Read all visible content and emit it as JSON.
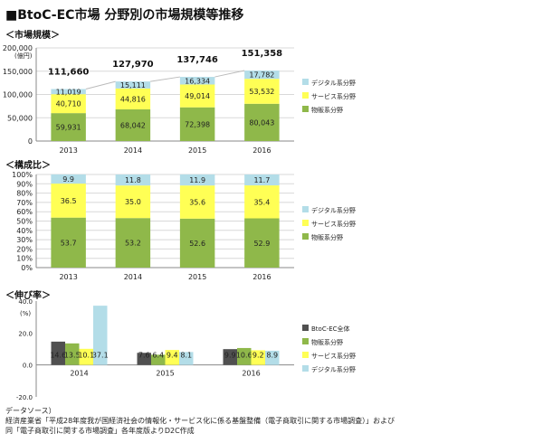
{
  "title": "■BtoC-EC市場 分野別の市場規模等推移",
  "sections": {
    "market": "＜市場規模＞",
    "ratio": "＜構成比＞",
    "growth": "＜伸び率＞"
  },
  "colors": {
    "goods": "#8fb84a",
    "service": "#ffff55",
    "digital": "#b3dde8",
    "total": "#505050",
    "grid": "#d8d8d8"
  },
  "chart_data": [
    {
      "id": "market",
      "type": "bar",
      "stacked": true,
      "title": "＜市場規模＞",
      "ylabel": "(億円)",
      "ylim": [
        0,
        200000
      ],
      "yticks": [
        "200,000",
        "150,000",
        "100,000",
        "50,000",
        "0"
      ],
      "categories": [
        "2013",
        "2014",
        "2015",
        "2016"
      ],
      "series": [
        {
          "name": "物販系分野",
          "values": [
            59931,
            68042,
            72398,
            80043
          ],
          "labels": [
            "59,931",
            "68,042",
            "72,398",
            "80,043"
          ]
        },
        {
          "name": "サービス系分野",
          "values": [
            40710,
            44816,
            49014,
            53532
          ],
          "labels": [
            "40,710",
            "44,816",
            "49,014",
            "53,532"
          ]
        },
        {
          "name": "デジタル系分野",
          "values": [
            11019,
            15111,
            16334,
            17782
          ],
          "labels": [
            "11,019",
            "15,111",
            "16,334",
            "17,782"
          ]
        }
      ],
      "totals": [
        "111,660",
        "127,970",
        "137,746",
        "151,358"
      ],
      "legend": "right"
    },
    {
      "id": "ratio",
      "type": "bar",
      "stacked": true,
      "title": "＜構成比＞",
      "ylim": [
        0,
        100
      ],
      "yticks": [
        "100%",
        "90%",
        "80%",
        "70%",
        "60%",
        "50%",
        "40%",
        "30%",
        "20%",
        "10%",
        "0%"
      ],
      "categories": [
        "2013",
        "2014",
        "2015",
        "2016"
      ],
      "series": [
        {
          "name": "物販系分野",
          "values": [
            53.7,
            53.2,
            52.6,
            52.9
          ],
          "labels": [
            "53.7",
            "53.2",
            "52.6",
            "52.9"
          ]
        },
        {
          "name": "サービス系分野",
          "values": [
            36.5,
            35.0,
            35.6,
            35.4
          ],
          "labels": [
            "36.5",
            "35.0",
            "35.6",
            "35.4"
          ]
        },
        {
          "name": "デジタル系分野",
          "values": [
            9.9,
            11.8,
            11.9,
            11.7
          ],
          "labels": [
            "9.9",
            "11.8",
            "11.9",
            "11.7"
          ]
        }
      ],
      "legend": "right"
    },
    {
      "id": "growth",
      "type": "bar",
      "stacked": false,
      "title": "＜伸び率＞",
      "ylabel": "(%)",
      "ylim": [
        -20,
        40
      ],
      "yticks": [
        "40.0",
        "20.0",
        "0.0",
        "-20.0"
      ],
      "categories": [
        "2014",
        "2015",
        "2016"
      ],
      "series": [
        {
          "name": "BtoC-EC全体",
          "values": [
            14.6,
            7.6,
            9.9
          ],
          "labels": [
            "14.6",
            "7.6",
            "9.9"
          ]
        },
        {
          "name": "物販系分野",
          "values": [
            13.5,
            6.4,
            10.6
          ],
          "labels": [
            "13.5",
            "6.4",
            "10.6"
          ]
        },
        {
          "name": "サービス系分野",
          "values": [
            10.1,
            9.4,
            9.2
          ],
          "labels": [
            "10.1",
            "9.4",
            "9.2"
          ]
        },
        {
          "name": "デジタル系分野",
          "values": [
            37.1,
            8.1,
            8.9
          ],
          "labels": [
            "37.1",
            "8.1",
            "8.9"
          ]
        }
      ],
      "legend": "right"
    }
  ],
  "source": {
    "line1": "データソース）",
    "line2": "経済産業省「平成28年度我が国経済社会の情報化・サービス化に係る基盤整備（電子商取引に関する市場調査）」および",
    "line3": "同「電子商取引に関する市場調査」各年度版よりD2C作成"
  }
}
